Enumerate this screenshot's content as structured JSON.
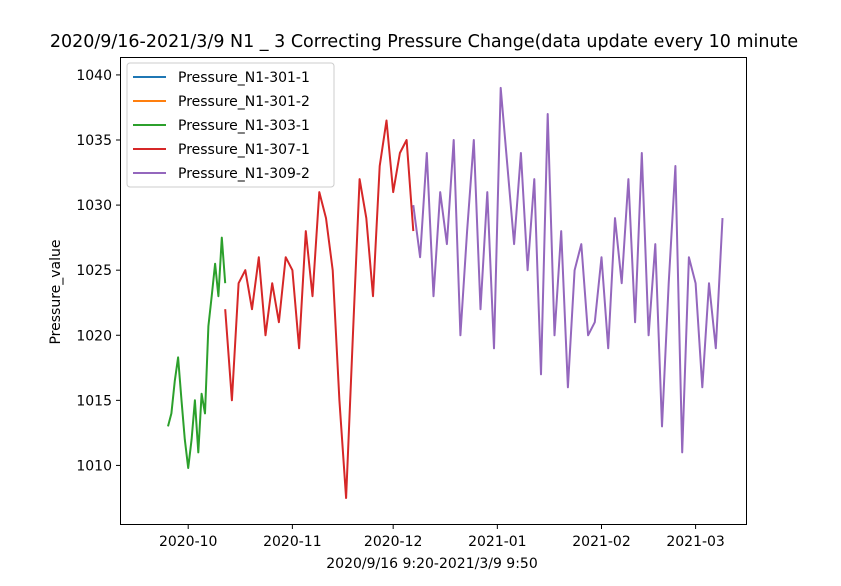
{
  "chart_data": {
    "type": "line",
    "title": "2020/9/16-2021/3/9 N1 _ 3  Correcting Pressure Change(data update every 10 minute",
    "xlabel": "2020/9/16 9:20-2021/3/9 9:50",
    "ylabel": "Pressure_value",
    "xlim": [
      "2020-09-11",
      "2021-03-16"
    ],
    "ylim": [
      1005.5,
      1041.3
    ],
    "x_ticks": [
      "2020-10",
      "2020-11",
      "2020-12",
      "2021-01",
      "2021-02",
      "2021-03"
    ],
    "y_ticks": [
      1010,
      1015,
      1020,
      1025,
      1030,
      1035,
      1040
    ],
    "legend_position": "top-left",
    "grid": false,
    "series": [
      {
        "name": "Pressure_N1-301-1",
        "color": "#1f77b4",
        "x": [],
        "y": []
      },
      {
        "name": "Pressure_N1-301-2",
        "color": "#ff7f0e",
        "x": [],
        "y": []
      },
      {
        "name": "Pressure_N1-303-1",
        "color": "#2ca02c",
        "x": [
          "2020-09-25",
          "2020-09-26",
          "2020-09-27",
          "2020-09-28",
          "2020-09-29",
          "2020-09-30",
          "2020-10-01",
          "2020-10-02",
          "2020-10-03",
          "2020-10-04",
          "2020-10-05",
          "2020-10-06",
          "2020-10-07",
          "2020-10-08",
          "2020-10-09",
          "2020-10-10",
          "2020-10-11",
          "2020-10-12"
        ],
        "y": [
          1013,
          1014,
          1016.5,
          1018.3,
          1015,
          1012,
          1009.8,
          1012,
          1015,
          1011,
          1015.5,
          1014,
          1020.7,
          1023,
          1025.5,
          1023,
          1027.5,
          1024
        ]
      },
      {
        "name": "Pressure_N1-307-1",
        "color": "#d62728",
        "x": [
          "2020-10-12",
          "2020-10-14",
          "2020-10-16",
          "2020-10-18",
          "2020-10-20",
          "2020-10-22",
          "2020-10-24",
          "2020-10-26",
          "2020-10-28",
          "2020-10-30",
          "2020-11-01",
          "2020-11-03",
          "2020-11-05",
          "2020-11-07",
          "2020-11-09",
          "2020-11-11",
          "2020-11-13",
          "2020-11-15",
          "2020-11-17",
          "2020-11-19",
          "2020-11-21",
          "2020-11-23",
          "2020-11-25",
          "2020-11-27",
          "2020-11-29",
          "2020-12-01",
          "2020-12-03",
          "2020-12-05",
          "2020-12-07"
        ],
        "y": [
          1022,
          1015,
          1024,
          1025,
          1022,
          1026,
          1020,
          1024,
          1021,
          1026,
          1025,
          1019,
          1028,
          1023,
          1031,
          1029,
          1025,
          1015,
          1007.5,
          1020,
          1032,
          1029,
          1023,
          1033,
          1036.5,
          1031,
          1034,
          1035,
          1028
        ]
      },
      {
        "name": "Pressure_N1-309-2",
        "color": "#9467bd",
        "x": [
          "2020-12-07",
          "2020-12-09",
          "2020-12-11",
          "2020-12-13",
          "2020-12-15",
          "2020-12-17",
          "2020-12-19",
          "2020-12-21",
          "2020-12-23",
          "2020-12-25",
          "2020-12-27",
          "2020-12-29",
          "2020-12-31",
          "2021-01-02",
          "2021-01-04",
          "2021-01-06",
          "2021-01-08",
          "2021-01-10",
          "2021-01-12",
          "2021-01-14",
          "2021-01-16",
          "2021-01-18",
          "2021-01-20",
          "2021-01-22",
          "2021-01-24",
          "2021-01-26",
          "2021-01-28",
          "2021-01-30",
          "2021-02-01",
          "2021-02-03",
          "2021-02-05",
          "2021-02-07",
          "2021-02-09",
          "2021-02-11",
          "2021-02-13",
          "2021-02-15",
          "2021-02-17",
          "2021-02-19",
          "2021-02-21",
          "2021-02-23",
          "2021-02-25",
          "2021-02-27",
          "2021-03-01",
          "2021-03-03",
          "2021-03-05",
          "2021-03-07",
          "2021-03-09"
        ],
        "y": [
          1030,
          1026,
          1034,
          1023,
          1031,
          1027,
          1035,
          1020,
          1028,
          1035,
          1022,
          1031,
          1019,
          1039,
          1033,
          1027,
          1034,
          1025,
          1032,
          1017,
          1037,
          1020,
          1028,
          1016,
          1025,
          1027,
          1020,
          1021,
          1026,
          1019,
          1029,
          1024,
          1032,
          1021,
          1034,
          1020,
          1027,
          1013,
          1024,
          1033,
          1011,
          1026,
          1024,
          1016,
          1024,
          1019,
          1029
        ]
      }
    ]
  }
}
